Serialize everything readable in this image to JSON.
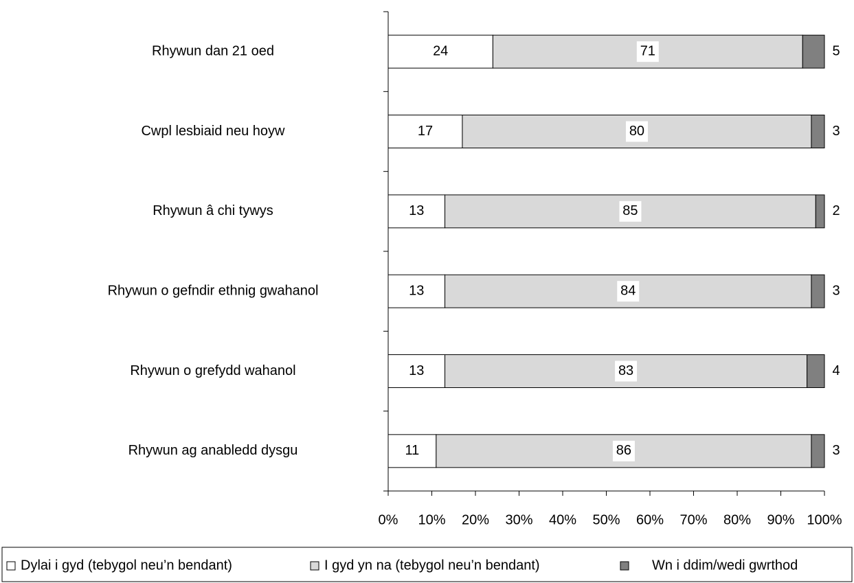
{
  "chart_data": {
    "type": "bar",
    "orientation": "horizontal",
    "stacked": true,
    "categories": [
      "Rhywun dan 21 oed",
      "Cwpl lesbiaid neu hoyw",
      "Rhywun â chi tywys",
      "Rhywun o gefndir ethnig gwahanol",
      "Rhywun o grefydd wahanol",
      "Rhywun ag anabledd dysgu"
    ],
    "series": [
      {
        "name": "Dylai i gyd (tebygol neu’n bendant)",
        "color": "#ffffff",
        "values": [
          24,
          17,
          13,
          13,
          13,
          11
        ]
      },
      {
        "name": "I gyd yn na (tebygol neu’n bendant)",
        "color": "#d9d9d9",
        "values": [
          71,
          80,
          85,
          84,
          83,
          86
        ]
      },
      {
        "name": "Wn i ddim/wedi gwrthod",
        "color": "#808080",
        "values": [
          5,
          3,
          2,
          3,
          4,
          3
        ]
      }
    ],
    "xlim": [
      0,
      100
    ],
    "xticks": [
      {
        "value": 0,
        "label": "0%"
      },
      {
        "value": 10,
        "label": "10%"
      },
      {
        "value": 20,
        "label": "20%"
      },
      {
        "value": 30,
        "label": "30%"
      },
      {
        "value": 40,
        "label": "40%"
      },
      {
        "value": 50,
        "label": "50%"
      },
      {
        "value": 60,
        "label": "60%"
      },
      {
        "value": 70,
        "label": "70%"
      },
      {
        "value": 80,
        "label": "80%"
      },
      {
        "value": 90,
        "label": "90%"
      },
      {
        "value": 100,
        "label": "100%"
      }
    ],
    "legend": "bottom"
  }
}
